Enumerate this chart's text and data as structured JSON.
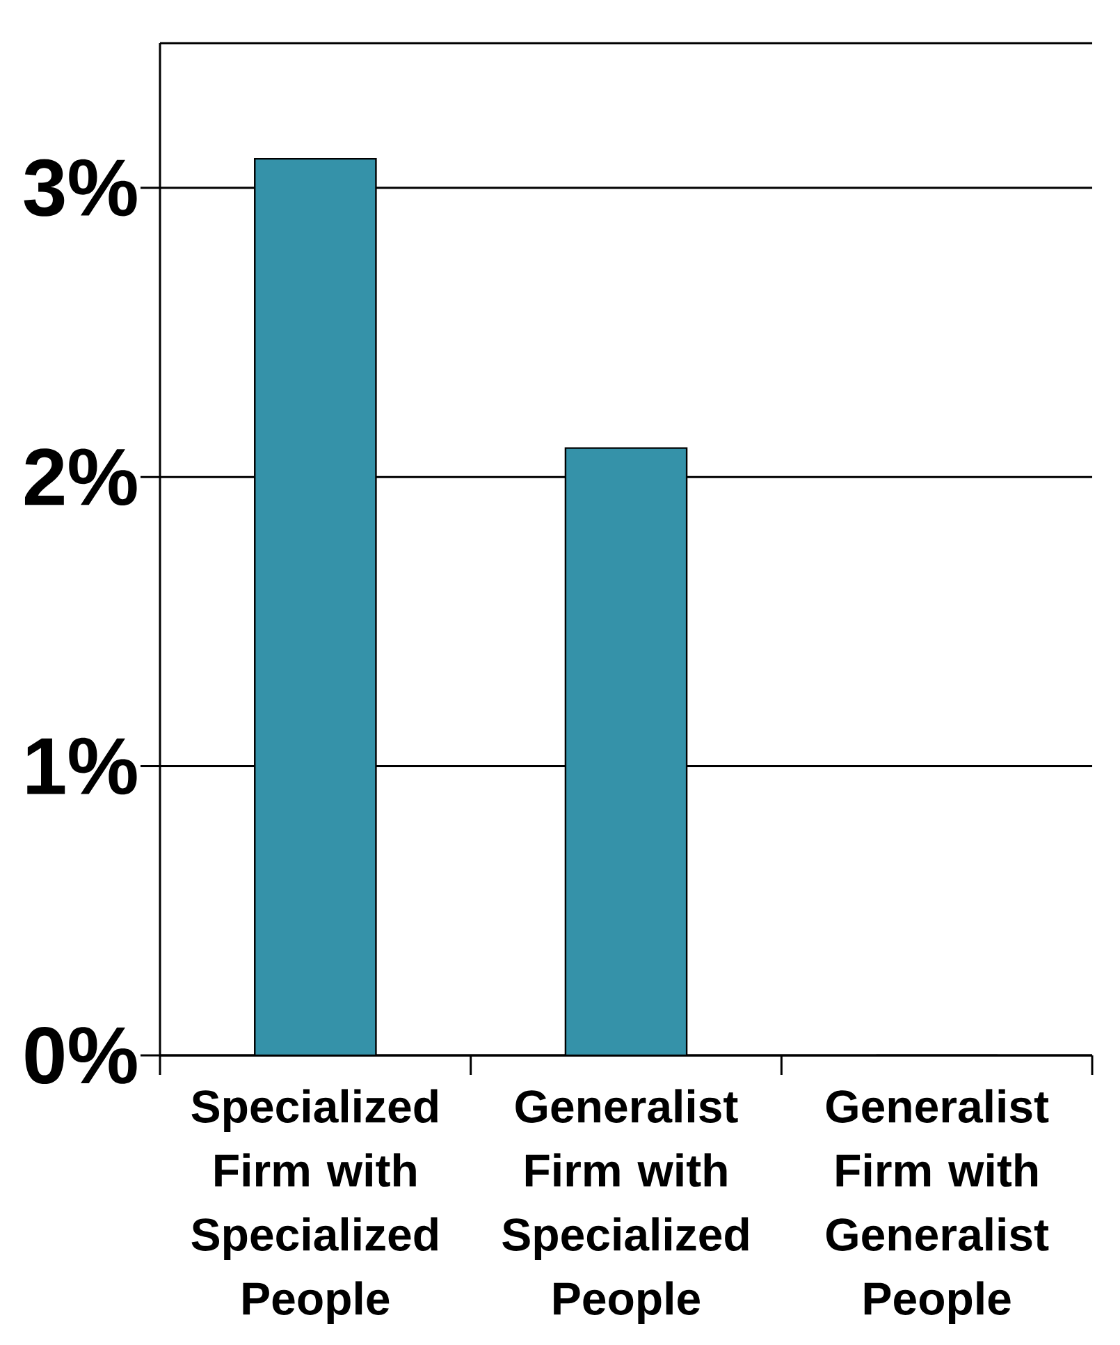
{
  "chart_data": {
    "type": "bar",
    "categories": [
      "Specialized Firm with Specialized People",
      "Generalist Firm with Specialized People",
      "Generalist Firm with Generalist People"
    ],
    "values": [
      3.1,
      2.1,
      0
    ],
    "color": "#3592a9",
    "ylim": [
      0,
      3.5
    ],
    "yticks": [
      {
        "value": 0,
        "label": "0%"
      },
      {
        "value": 1,
        "label": "1%"
      },
      {
        "value": 2,
        "label": "2%"
      },
      {
        "value": 3,
        "label": "3%"
      }
    ],
    "grid": "y"
  }
}
